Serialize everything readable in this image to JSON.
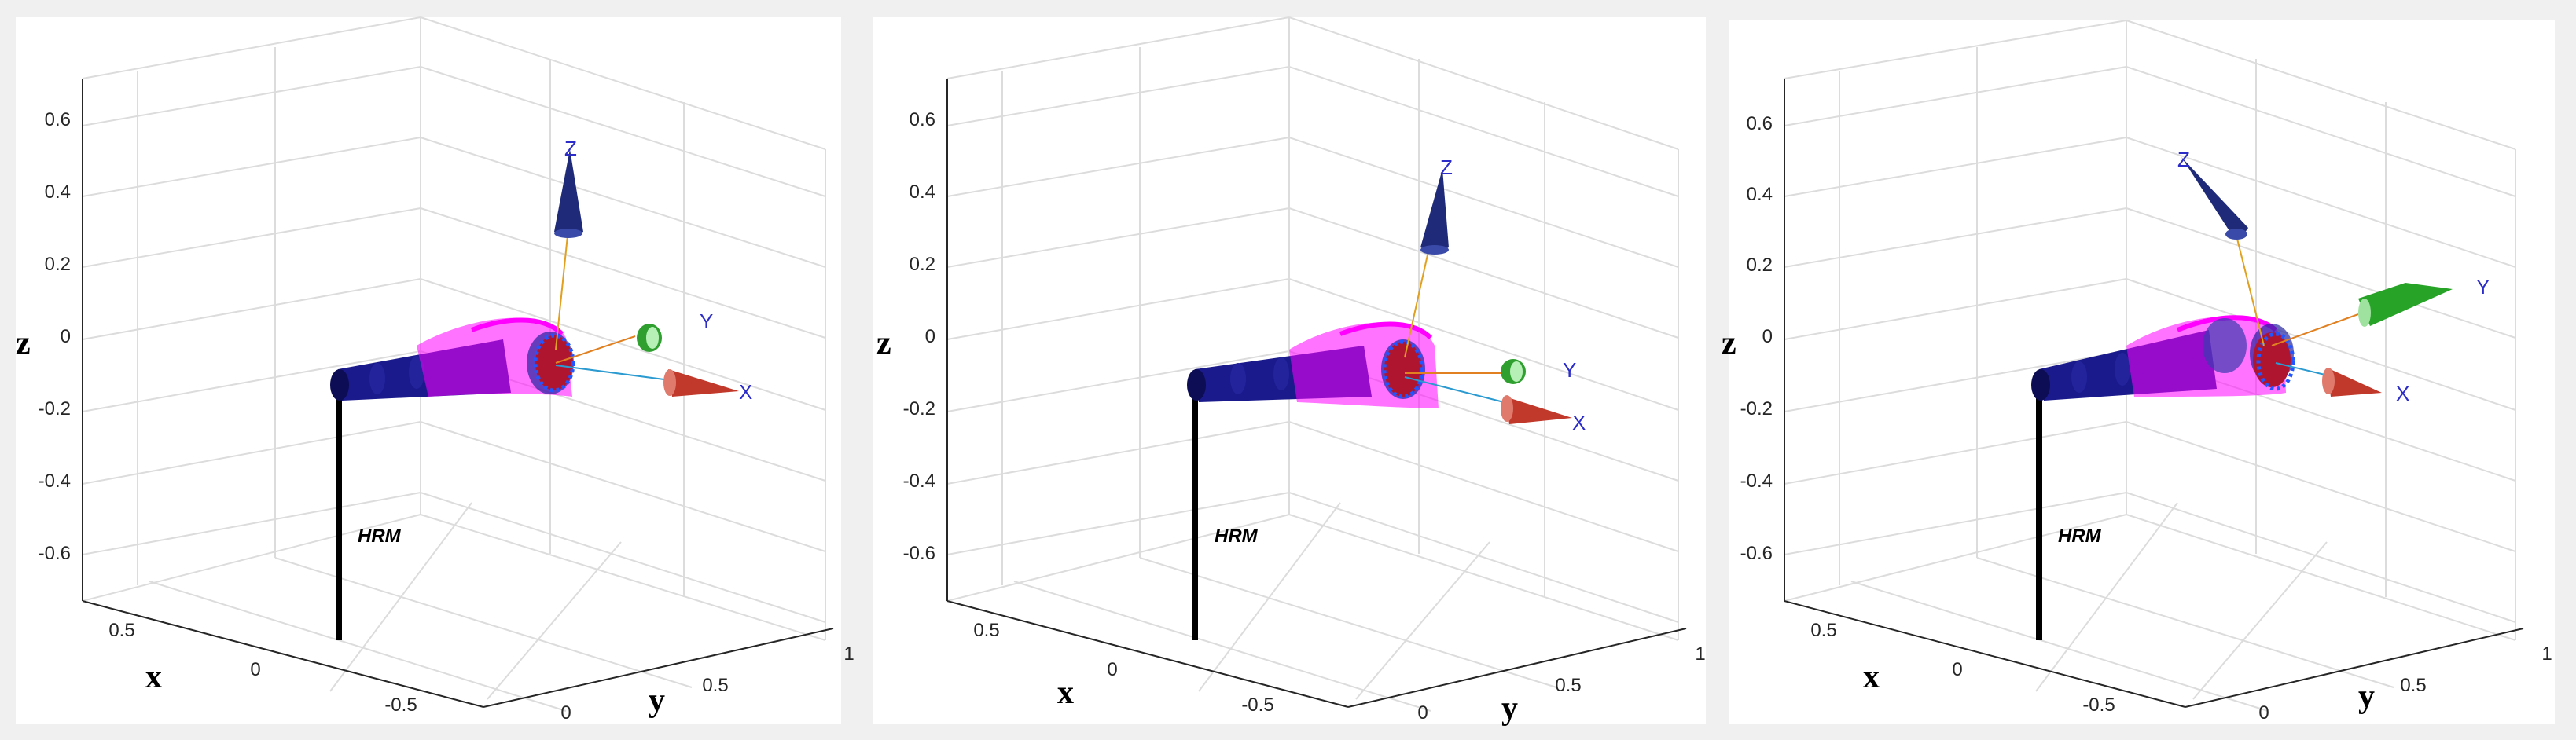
{
  "panels": [
    {
      "z_ticks": [
        "0.6",
        "0.4",
        "0.2",
        "0",
        "-0.2",
        "-0.4",
        "-0.6"
      ],
      "x_ticks": [
        "0.5",
        "0",
        "-0.5"
      ],
      "y_ticks": [
        "0",
        "0.5",
        "1"
      ],
      "labels": {
        "x": "x",
        "y": "y",
        "z": "z"
      },
      "frame": {
        "X": "X",
        "Y": "Y",
        "Z": "Z"
      },
      "robot_label": "HRM"
    },
    {
      "z_ticks": [
        "0.6",
        "0.4",
        "0.2",
        "0",
        "-0.2",
        "-0.4",
        "-0.6"
      ],
      "x_ticks": [
        "0.5",
        "0",
        "-0.5"
      ],
      "y_ticks": [
        "0",
        "0.5",
        "1"
      ],
      "labels": {
        "x": "x",
        "y": "y",
        "z": "z"
      },
      "frame": {
        "X": "X",
        "Y": "Y",
        "Z": "Z"
      },
      "robot_label": "HRM"
    },
    {
      "z_ticks": [
        "0.6",
        "0.4",
        "0.2",
        "0",
        "-0.2",
        "-0.4",
        "-0.6"
      ],
      "x_ticks": [
        "0.5",
        "0",
        "-0.5"
      ],
      "y_ticks": [
        "0",
        "0.5",
        "1"
      ],
      "labels": {
        "x": "x",
        "y": "y",
        "z": "z"
      },
      "frame": {
        "X": "X",
        "Y": "Y",
        "Z": "Z"
      },
      "robot_label": "HRM"
    }
  ],
  "colors": {
    "background_margin": "#f0f0f0",
    "grid": "#dcdcdc",
    "axis": "#262626",
    "base_pole": "#000000",
    "rigid_link": "#1a1a8c",
    "soft_segment": "#ff00ff",
    "end_ring": "#2255ff",
    "x_arrow": "#c0392b",
    "y_arrow": "#27a327",
    "z_arrow": "#1f2a78",
    "frame_letter": "#2c2cc8"
  }
}
